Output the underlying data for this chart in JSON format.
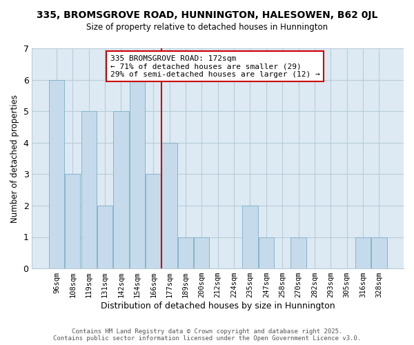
{
  "title": "335, BROMSGROVE ROAD, HUNNINGTON, HALESOWEN, B62 0JL",
  "subtitle": "Size of property relative to detached houses in Hunnington",
  "xlabel": "Distribution of detached houses by size in Hunnington",
  "ylabel": "Number of detached properties",
  "bar_labels": [
    "96sqm",
    "108sqm",
    "119sqm",
    "131sqm",
    "142sqm",
    "154sqm",
    "166sqm",
    "177sqm",
    "189sqm",
    "200sqm",
    "212sqm",
    "224sqm",
    "235sqm",
    "247sqm",
    "258sqm",
    "270sqm",
    "282sqm",
    "293sqm",
    "305sqm",
    "316sqm",
    "328sqm"
  ],
  "bar_values": [
    6,
    3,
    5,
    2,
    5,
    6,
    3,
    4,
    1,
    1,
    0,
    0,
    2,
    1,
    0,
    1,
    0,
    0,
    0,
    1,
    1
  ],
  "highlight_index": 6,
  "highlight_color": "#cc0000",
  "bar_color": "#c5daea",
  "bar_edge_color": "#88b4cc",
  "ylim": [
    0,
    7
  ],
  "yticks": [
    0,
    1,
    2,
    3,
    4,
    5,
    6,
    7
  ],
  "annotation_text": "335 BROMSGROVE ROAD: 172sqm\n← 71% of detached houses are smaller (29)\n29% of semi-detached houses are larger (12) →",
  "footer_line1": "Contains HM Land Registry data © Crown copyright and database right 2025.",
  "footer_line2": "Contains public sector information licensed under the Open Government Licence v3.0.",
  "bg_color": "#ffffff",
  "plot_bg_color": "#ddeaf3",
  "grid_color": "#b8ccd8",
  "annotation_box_color": "#ffffff",
  "annotation_box_edge": "#cc0000"
}
